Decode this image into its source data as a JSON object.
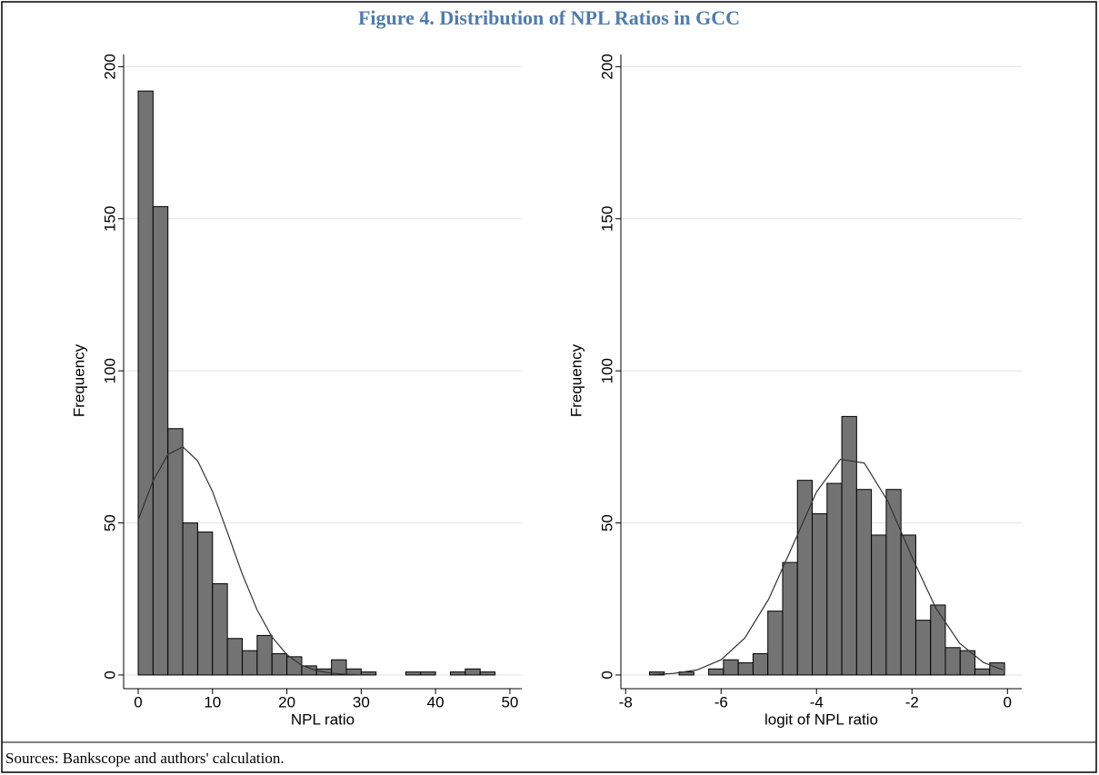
{
  "title": "Figure 4. Distribution of NPL Ratios in GCC",
  "source": "Sources: Bankscope and authors' calculation.",
  "chart_data": [
    {
      "type": "histogram",
      "ylabel": "Frequency",
      "xlabel": "NPL ratio",
      "color": "#737373",
      "grid": true,
      "bins": [
        0,
        2,
        4,
        6,
        8,
        10,
        12,
        14,
        16,
        18,
        20,
        22,
        24,
        26,
        28,
        30,
        32,
        34,
        36,
        38,
        40,
        42,
        44,
        46,
        48
      ],
      "values": [
        192,
        154,
        81,
        50,
        47,
        30,
        12,
        8,
        13,
        7,
        6,
        3,
        2,
        5,
        2,
        1,
        0,
        0,
        1,
        1,
        0,
        1,
        2,
        1
      ],
      "curve": {
        "color": "#333333",
        "x": [
          0,
          2,
          4,
          6,
          8,
          10,
          12,
          14,
          16,
          18,
          20,
          22,
          24,
          26,
          28,
          30
        ],
        "values": [
          51,
          63.8,
          72.5,
          75,
          70.4,
          60.3,
          46.9,
          33.2,
          21.4,
          12.5,
          6.7,
          3.2,
          1.4,
          0.6,
          0.2,
          0.07
        ]
      },
      "xlim": [
        -1.96,
        51.6
      ],
      "ylim": [
        -4.5,
        204
      ],
      "xticks": [
        0,
        10,
        20,
        30,
        40,
        50
      ],
      "yticks": [
        0,
        50,
        100,
        150,
        200
      ]
    },
    {
      "type": "histogram",
      "ylabel": "Frequency",
      "xlabel": "logit of NPL ratio",
      "color": "#737373",
      "grid": true,
      "bins": [
        -7.5,
        -7.19,
        -6.88,
        -6.57,
        -6.26,
        -5.95,
        -5.64,
        -5.33,
        -5.02,
        -4.71,
        -4.4,
        -4.09,
        -3.78,
        -3.47,
        -3.16,
        -2.85,
        -2.54,
        -2.23,
        -1.92,
        -1.61,
        -1.3,
        -0.99,
        -0.68,
        -0.37,
        -0.06
      ],
      "values": [
        1,
        0,
        1,
        0,
        2,
        5,
        4,
        7,
        21,
        37,
        64,
        53,
        63,
        85,
        61,
        46,
        61,
        46,
        18,
        23,
        9,
        8,
        2,
        4
      ],
      "curve": {
        "color": "#333333",
        "x": [
          -7.5,
          -7,
          -6.5,
          -6,
          -5.5,
          -5,
          -4.5,
          -4,
          -3.5,
          -3,
          -2.5,
          -2,
          -1.5,
          -1,
          -0.5,
          -0.1
        ],
        "values": [
          0.11,
          0.5,
          1.7,
          5,
          12.2,
          25,
          42.5,
          60.2,
          70.9,
          69.7,
          57,
          38.8,
          22,
          10.4,
          4.1,
          1.7
        ]
      },
      "xlim": [
        -8.1,
        0.3
      ],
      "ylim": [
        -4.5,
        204
      ],
      "xticks": [
        -8,
        -6,
        -4,
        -2,
        0
      ],
      "yticks": [
        0,
        50,
        100,
        150,
        200
      ]
    }
  ]
}
